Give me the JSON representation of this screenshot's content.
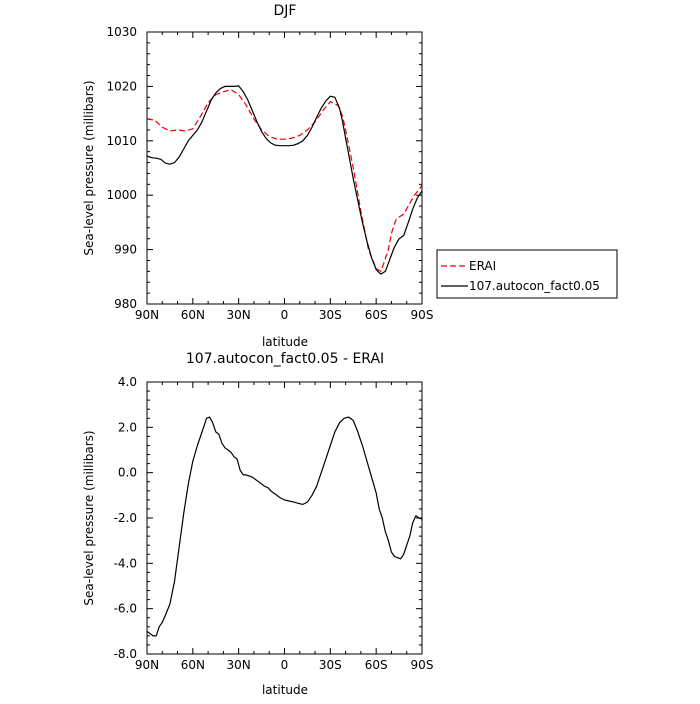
{
  "chart_data": [
    {
      "type": "line",
      "title": "DJF",
      "xlabel": "latitude",
      "ylabel": "Sea-level pressure (millibars)",
      "xlim": [
        90,
        -90
      ],
      "ylim": [
        980,
        1030
      ],
      "x_ticks": [
        90,
        60,
        30,
        0,
        -30,
        -60,
        -90
      ],
      "x_tick_labels": [
        "90N",
        "60N",
        "30N",
        "0",
        "30S",
        "60S",
        "90S"
      ],
      "y_ticks": [
        980,
        990,
        1000,
        1010,
        1020,
        1030
      ],
      "y_tick_labels": [
        "980",
        "990",
        "1000",
        "1010",
        "1020",
        "1030"
      ],
      "grid": false,
      "legend": "right",
      "series": [
        {
          "name": "ERAI",
          "color": "#e8000b",
          "dash": true,
          "x": [
            90,
            85,
            80,
            75,
            70,
            65,
            60,
            55,
            50,
            45,
            40,
            35,
            30,
            25,
            20,
            15,
            10,
            5,
            0,
            -5,
            -10,
            -15,
            -20,
            -25,
            -30,
            -35,
            -38,
            -40,
            -45,
            -50,
            -55,
            -60,
            -63,
            -65,
            -68,
            -70,
            -73,
            -75,
            -78,
            -80,
            -83,
            -85,
            -88,
            -90
          ],
          "y": [
            1014.0,
            1013.8,
            1012.5,
            1011.8,
            1012.0,
            1011.8,
            1012.2,
            1014.5,
            1017.0,
            1018.5,
            1019.0,
            1019.4,
            1018.5,
            1016.5,
            1014.0,
            1012.0,
            1010.8,
            1010.3,
            1010.3,
            1010.5,
            1011.0,
            1012.0,
            1013.5,
            1015.5,
            1017.2,
            1016.5,
            1014.5,
            1012.0,
            1005.0,
            997.0,
            990.0,
            986.5,
            986.0,
            987.5,
            990.0,
            993.0,
            995.5,
            996.0,
            996.5,
            997.5,
            999.0,
            1000.0,
            1001.0,
            1001.8
          ]
        },
        {
          "name": "107.autocon_fact0.05",
          "color": "#000000",
          "dash": false,
          "x": [
            90,
            87,
            84,
            81,
            78,
            75,
            72,
            69,
            66,
            63,
            60,
            57,
            54,
            51,
            48,
            45,
            42,
            39,
            36,
            33,
            30,
            27,
            24,
            21,
            18,
            15,
            12,
            9,
            6,
            3,
            0,
            -3,
            -6,
            -9,
            -12,
            -15,
            -18,
            -21,
            -24,
            -27,
            -30,
            -33,
            -36,
            -38,
            -40,
            -42,
            -45,
            -48,
            -51,
            -54,
            -57,
            -60,
            -63,
            -66,
            -68,
            -70,
            -72,
            -75,
            -78,
            -81,
            -84,
            -87,
            -90
          ],
          "y": [
            1007.2,
            1006.9,
            1006.8,
            1006.6,
            1005.9,
            1005.7,
            1006.0,
            1007.0,
            1008.5,
            1010.0,
            1011.0,
            1012.0,
            1013.5,
            1015.5,
            1017.5,
            1018.8,
            1019.6,
            1020.0,
            1020.0,
            1020.0,
            1020.1,
            1019.0,
            1017.5,
            1015.5,
            1013.5,
            1011.7,
            1010.4,
            1009.6,
            1009.2,
            1009.1,
            1009.1,
            1009.1,
            1009.2,
            1009.5,
            1010.0,
            1011.0,
            1012.5,
            1014.3,
            1016.0,
            1017.3,
            1018.2,
            1018.0,
            1016.0,
            1013.5,
            1010.5,
            1007.5,
            1003.0,
            999.0,
            995.0,
            991.5,
            988.5,
            986.3,
            985.5,
            986.0,
            987.5,
            989.0,
            990.5,
            992.0,
            992.6,
            995.0,
            997.5,
            999.5,
            1000.8
          ]
        }
      ]
    },
    {
      "type": "line",
      "title": "107.autocon_fact0.05 - ERAI",
      "xlabel": "latitude",
      "ylabel": "Sea-level pressure (millibars)",
      "xlim": [
        90,
        -90
      ],
      "ylim": [
        -8.0,
        4.0
      ],
      "x_ticks": [
        90,
        60,
        30,
        0,
        -30,
        -60,
        -90
      ],
      "x_tick_labels": [
        "90N",
        "60N",
        "30N",
        "0",
        "30S",
        "60S",
        "90S"
      ],
      "y_ticks": [
        -8.0,
        -6.0,
        -4.0,
        -2.0,
        0.0,
        2.0,
        4.0
      ],
      "y_tick_labels": [
        "-8.0",
        "-6.0",
        "-4.0",
        "-2.0",
        "0.0",
        "2.0",
        "4.0"
      ],
      "grid": false,
      "series": [
        {
          "color": "#000000",
          "dash": false,
          "x": [
            90,
            88,
            86,
            84,
            82,
            80,
            78,
            75,
            72,
            69,
            66,
            63,
            60,
            57,
            54,
            51,
            49,
            47,
            45,
            43,
            41,
            39,
            37,
            35,
            33,
            31,
            29,
            27,
            25,
            23,
            21,
            19,
            17,
            15,
            13,
            11,
            9,
            7,
            5,
            3,
            0,
            -3,
            -6,
            -9,
            -12,
            -15,
            -18,
            -21,
            -24,
            -27,
            -30,
            -33,
            -36,
            -39,
            -42,
            -45,
            -48,
            -51,
            -54,
            -57,
            -60,
            -62,
            -64,
            -66,
            -68,
            -70,
            -72,
            -74,
            -76,
            -78,
            -80,
            -82,
            -84,
            -86,
            -88,
            -90
          ],
          "y": [
            -7.0,
            -7.1,
            -7.2,
            -7.2,
            -6.8,
            -6.6,
            -6.3,
            -5.8,
            -4.8,
            -3.3,
            -1.8,
            -0.5,
            0.5,
            1.2,
            1.8,
            2.4,
            2.45,
            2.2,
            1.8,
            1.7,
            1.3,
            1.1,
            1.0,
            0.9,
            0.7,
            0.6,
            0.1,
            -0.1,
            -0.1,
            -0.15,
            -0.2,
            -0.3,
            -0.4,
            -0.5,
            -0.6,
            -0.65,
            -0.8,
            -0.9,
            -1.0,
            -1.1,
            -1.2,
            -1.25,
            -1.3,
            -1.35,
            -1.4,
            -1.3,
            -1.0,
            -0.6,
            0.0,
            0.6,
            1.2,
            1.8,
            2.2,
            2.4,
            2.45,
            2.3,
            1.8,
            1.2,
            0.5,
            -0.2,
            -0.9,
            -1.6,
            -2.0,
            -2.6,
            -3.0,
            -3.5,
            -3.7,
            -3.75,
            -3.8,
            -3.6,
            -3.2,
            -2.8,
            -2.2,
            -1.9,
            -2.0,
            -2.05
          ]
        }
      ]
    }
  ]
}
